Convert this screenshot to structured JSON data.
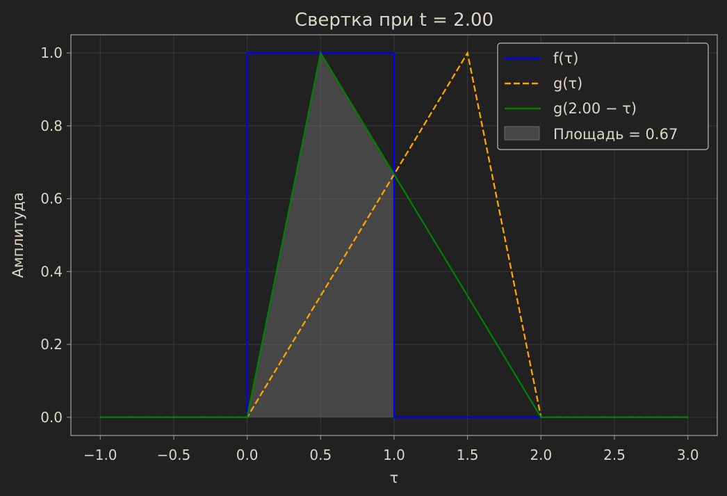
{
  "chart_data": {
    "type": "line",
    "title": "Свертка при t = 2.00",
    "xlabel": "τ",
    "ylabel": "Амплитуда",
    "xlim": [
      -1.2,
      3.2
    ],
    "ylim": [
      -0.05,
      1.05
    ],
    "xticks": [
      -1.0,
      -0.5,
      0.0,
      0.5,
      1.0,
      1.5,
      2.0,
      2.5,
      3.0
    ],
    "xtick_labels": [
      "−1.0",
      "−0.5",
      "0.0",
      "0.5",
      "1.0",
      "1.5",
      "2.0",
      "2.5",
      "3.0"
    ],
    "yticks": [
      0.0,
      0.2,
      0.4,
      0.6,
      0.8,
      1.0
    ],
    "ytick_labels": [
      "0.0",
      "0.2",
      "0.4",
      "0.6",
      "0.8",
      "1.0"
    ],
    "grid": true,
    "legend_position": "top-right",
    "series": [
      {
        "name": "f(τ)",
        "style": "solid",
        "color": "#0000ee",
        "x": [
          -1.0,
          0.0,
          0.0,
          1.0,
          1.0,
          2.0,
          3.0
        ],
        "y": [
          0.0,
          0.0,
          1.0,
          1.0,
          0.0,
          0.0,
          0.0
        ]
      },
      {
        "name": "g(τ)",
        "style": "dashed",
        "color": "#ffa500",
        "x": [
          -1.0,
          0.0,
          1.5,
          2.0,
          3.0
        ],
        "y": [
          0.0,
          0.0,
          1.0,
          0.0,
          0.0
        ]
      },
      {
        "name": "g(2.00 − τ)",
        "style": "solid",
        "color": "#008000",
        "x": [
          -1.0,
          0.0,
          0.5,
          2.0,
          3.0
        ],
        "y": [
          0.0,
          0.0,
          1.0,
          0.0,
          0.0
        ]
      }
    ],
    "fill": {
      "name": "Площадь = 0.67",
      "color": "#808080",
      "x": [
        0.0,
        0.5,
        1.0
      ],
      "y": [
        0.0,
        1.0,
        0.6667
      ]
    },
    "legend": [
      "f(τ)",
      "g(τ)",
      "g(2.00 − τ)",
      "Площадь = 0.67"
    ],
    "colors": {
      "background": "#212121",
      "axes_edge": "#8a8a8a",
      "grid": "#3a3a3a",
      "text": "#dcd6c8",
      "legend_edge": "#bdbdbd"
    }
  }
}
